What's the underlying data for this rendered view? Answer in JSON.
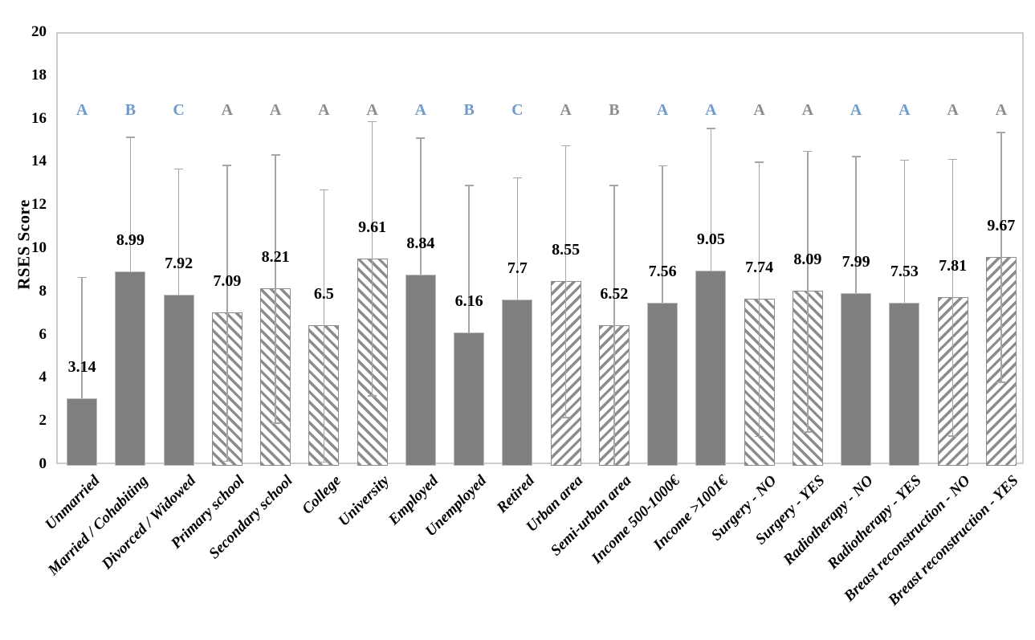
{
  "chart_data": {
    "type": "bar",
    "title": "",
    "xlabel": "",
    "ylabel": "RSES Score",
    "ylim": [
      0,
      20
    ],
    "ytick_step": 2,
    "yticks": [
      0,
      2,
      4,
      6,
      8,
      10,
      12,
      14,
      16,
      18,
      20
    ],
    "grid": false,
    "legend": "none",
    "error_bars": "plus-minus standard deviation, gray with caps",
    "categories": [
      "Unmarried",
      "Married / Cohabiting",
      "Divorced / Widowed",
      "Primary school",
      "Secondary school",
      "College",
      "University",
      "Employed",
      "Unemployed",
      "Retired",
      "Urban area",
      "Semi-urban area",
      "Income 500-1000€",
      "Income >1001€",
      "Surgery - NO",
      "Surgery - YES",
      "Radiotherapy - NO",
      "Radiotherapy - YES",
      "Breast reconstruction - NO",
      "Breast reconstruction - YES"
    ],
    "bars": [
      {
        "label": "Unmarried",
        "value": "3.14",
        "sd": 5.6,
        "letter": "A",
        "letter_color": "blue",
        "fill": "solid"
      },
      {
        "label": "Married / Cohabiting",
        "value": "8.99",
        "sd": 6.25,
        "letter": "B",
        "letter_color": "blue",
        "fill": "solid"
      },
      {
        "label": "Divorced / Widowed",
        "value": "7.92",
        "sd": 5.85,
        "letter": "C",
        "letter_color": "blue",
        "fill": "solid"
      },
      {
        "label": "Primary school",
        "value": "7.09",
        "sd": 6.85,
        "letter": "A",
        "letter_color": "gray",
        "fill": "hatch-down"
      },
      {
        "label": "Secondary school",
        "value": "8.21",
        "sd": 6.2,
        "letter": "A",
        "letter_color": "gray",
        "fill": "hatch-down"
      },
      {
        "label": "College",
        "value": "6.5",
        "sd": 6.3,
        "letter": "A",
        "letter_color": "gray",
        "fill": "hatch-down"
      },
      {
        "label": "University",
        "value": "9.61",
        "sd": 6.35,
        "letter": "A",
        "letter_color": "gray",
        "fill": "hatch-down"
      },
      {
        "label": "Employed",
        "value": "8.84",
        "sd": 6.35,
        "letter": "A",
        "letter_color": "blue",
        "fill": "solid"
      },
      {
        "label": "Unemployed",
        "value": "6.16",
        "sd": 6.85,
        "letter": "B",
        "letter_color": "blue",
        "fill": "solid"
      },
      {
        "label": "Retired",
        "value": "7.7",
        "sd": 5.65,
        "letter": "C",
        "letter_color": "blue",
        "fill": "solid"
      },
      {
        "label": "Urban area",
        "value": "8.55",
        "sd": 6.3,
        "letter": "A",
        "letter_color": "gray",
        "fill": "hatch-up"
      },
      {
        "label": "Semi-urban area",
        "value": "6.52",
        "sd": 6.48,
        "letter": "B",
        "letter_color": "gray",
        "fill": "hatch-up"
      },
      {
        "label": "Income 500-1000€",
        "value": "7.56",
        "sd": 6.35,
        "letter": "A",
        "letter_color": "blue",
        "fill": "solid"
      },
      {
        "label": "Income >1001€",
        "value": "9.05",
        "sd": 6.6,
        "letter": "A",
        "letter_color": "blue",
        "fill": "solid"
      },
      {
        "label": "Surgery - NO",
        "value": "7.74",
        "sd": 6.35,
        "letter": "A",
        "letter_color": "gray",
        "fill": "hatch-down"
      },
      {
        "label": "Surgery - YES",
        "value": "8.09",
        "sd": 6.5,
        "letter": "A",
        "letter_color": "gray",
        "fill": "hatch-down"
      },
      {
        "label": "Radiotherapy - NO",
        "value": "7.99",
        "sd": 6.35,
        "letter": "A",
        "letter_color": "blue",
        "fill": "solid"
      },
      {
        "label": "Radiotherapy - YES",
        "value": "7.53",
        "sd": 6.65,
        "letter": "A",
        "letter_color": "blue",
        "fill": "solid"
      },
      {
        "label": "Breast reconstruction - NO",
        "value": "7.81",
        "sd": 6.4,
        "letter": "A",
        "letter_color": "gray",
        "fill": "hatch-up"
      },
      {
        "label": "Breast reconstruction - YES",
        "value": "9.67",
        "sd": 5.78,
        "letter": "A",
        "letter_color": "gray",
        "fill": "hatch-up"
      }
    ]
  },
  "colors": {
    "bar_fill": "#7f7f7f",
    "bar_border": "#bdbdbd",
    "hatch_stripe": "#8c8c8c",
    "error_bar": "#a6a6a6",
    "letter_blue": "#6d9bcb",
    "letter_gray": "#8c8c8c",
    "axis_line": "#cccccc",
    "text": "#000000"
  }
}
